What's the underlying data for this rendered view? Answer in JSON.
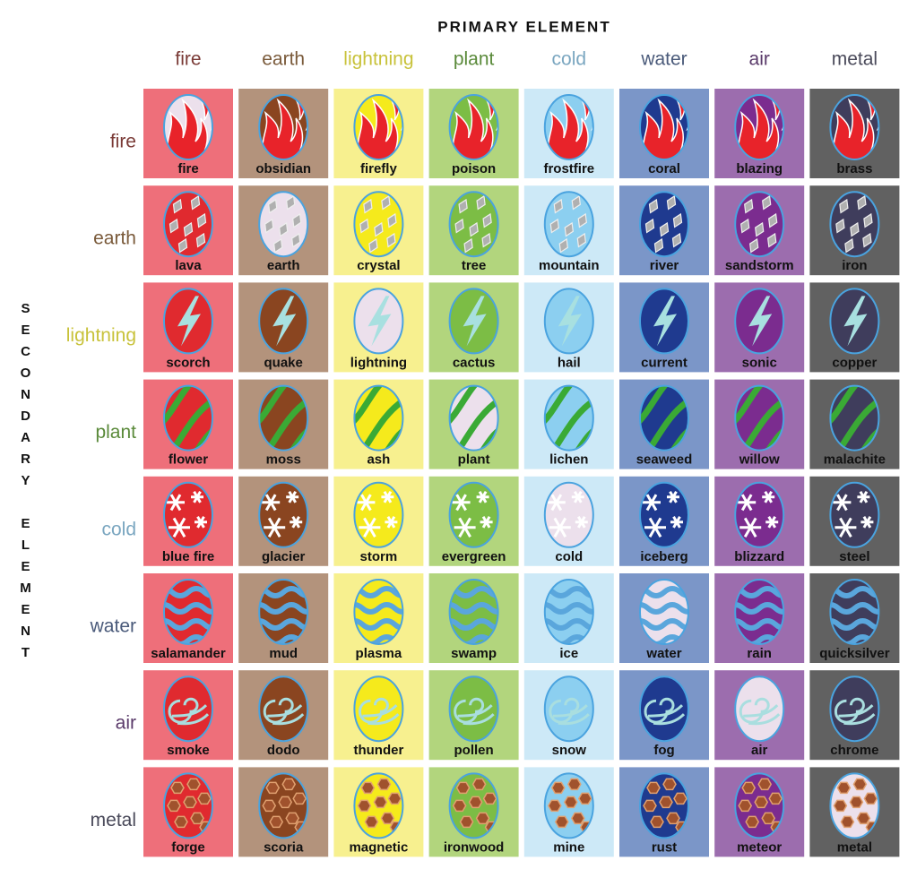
{
  "title_primary": "PRIMARY ELEMENT",
  "title_secondary": "SECONDARY ELEMENT",
  "columns": [
    "fire",
    "earth",
    "lightning",
    "plant",
    "cold",
    "water",
    "air",
    "metal"
  ],
  "rows": [
    "fire",
    "earth",
    "lightning",
    "plant",
    "cold",
    "water",
    "air",
    "metal"
  ],
  "cells": [
    [
      "fire",
      "obsidian",
      "firefly",
      "poison",
      "frostfire",
      "coral",
      "blazing",
      "brass"
    ],
    [
      "lava",
      "earth",
      "crystal",
      "tree",
      "mountain",
      "river",
      "sandstorm",
      "iron"
    ],
    [
      "scorch",
      "quake",
      "lightning",
      "cactus",
      "hail",
      "current",
      "sonic",
      "copper"
    ],
    [
      "flower",
      "moss",
      "ash",
      "plant",
      "lichen",
      "seaweed",
      "willow",
      "malachite"
    ],
    [
      "blue fire",
      "glacier",
      "storm",
      "evergreen",
      "cold",
      "iceberg",
      "blizzard",
      "steel"
    ],
    [
      "salamander",
      "mud",
      "plasma",
      "swamp",
      "ice",
      "water",
      "rain",
      "quicksilver"
    ],
    [
      "smoke",
      "dodo",
      "thunder",
      "pollen",
      "snow",
      "fog",
      "air",
      "chrome"
    ],
    [
      "forge",
      "scoria",
      "magnetic",
      "ironwood",
      "mine",
      "rust",
      "meteor",
      "metal"
    ]
  ]
}
